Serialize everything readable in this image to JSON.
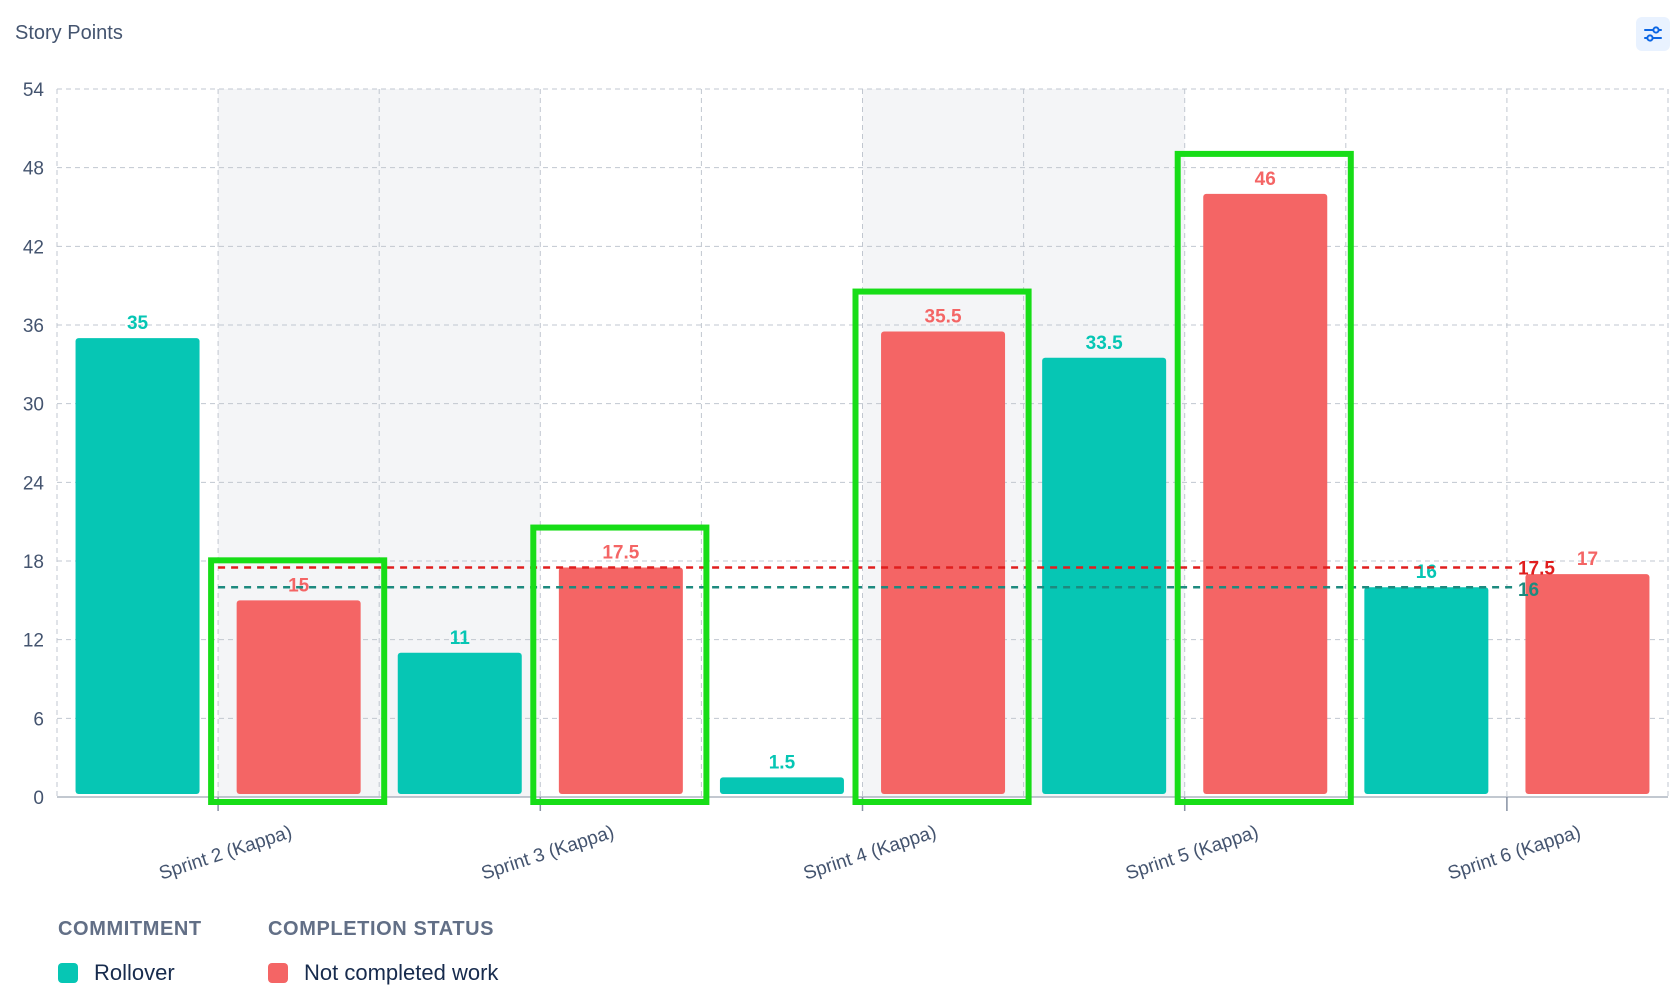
{
  "header": {
    "title": "Story Points",
    "settings_icon": "sliders-icon"
  },
  "colors": {
    "rollover": "#06c6b4",
    "not_completed": "#f46565",
    "rollover_avg_line": "#1d8a7f",
    "not_completed_avg_line": "#e01e1e",
    "highlight_box": "#17dd17",
    "shaded_band": "#f4f5f7"
  },
  "chart_data": {
    "type": "bar",
    "title": "Story Points",
    "categories": [
      "Sprint 2 (Kappa)",
      "Sprint 3 (Kappa)",
      "Sprint 4 (Kappa)",
      "Sprint 5 (Kappa)",
      "Sprint 6 (Kappa)"
    ],
    "series": [
      {
        "name": "Rollover",
        "values": [
          35,
          11,
          1.5,
          33.5,
          16
        ]
      },
      {
        "name": "Not completed work",
        "values": [
          15,
          17.5,
          35.5,
          46,
          17
        ]
      }
    ],
    "reference_lines": [
      {
        "series": "Not completed work",
        "value": 17.5,
        "label": "17.5"
      },
      {
        "series": "Rollover",
        "value": 16,
        "label": "16"
      }
    ],
    "ylim": [
      0,
      54
    ],
    "yticks": [
      0,
      6,
      12,
      18,
      24,
      30,
      36,
      42,
      48,
      54
    ],
    "grid": true,
    "legend_position": "bottom-left"
  },
  "legend": {
    "groups": [
      {
        "heading": "COMMITMENT",
        "label": "Rollover"
      },
      {
        "heading": "COMPLETION STATUS",
        "label": "Not completed work"
      }
    ]
  }
}
